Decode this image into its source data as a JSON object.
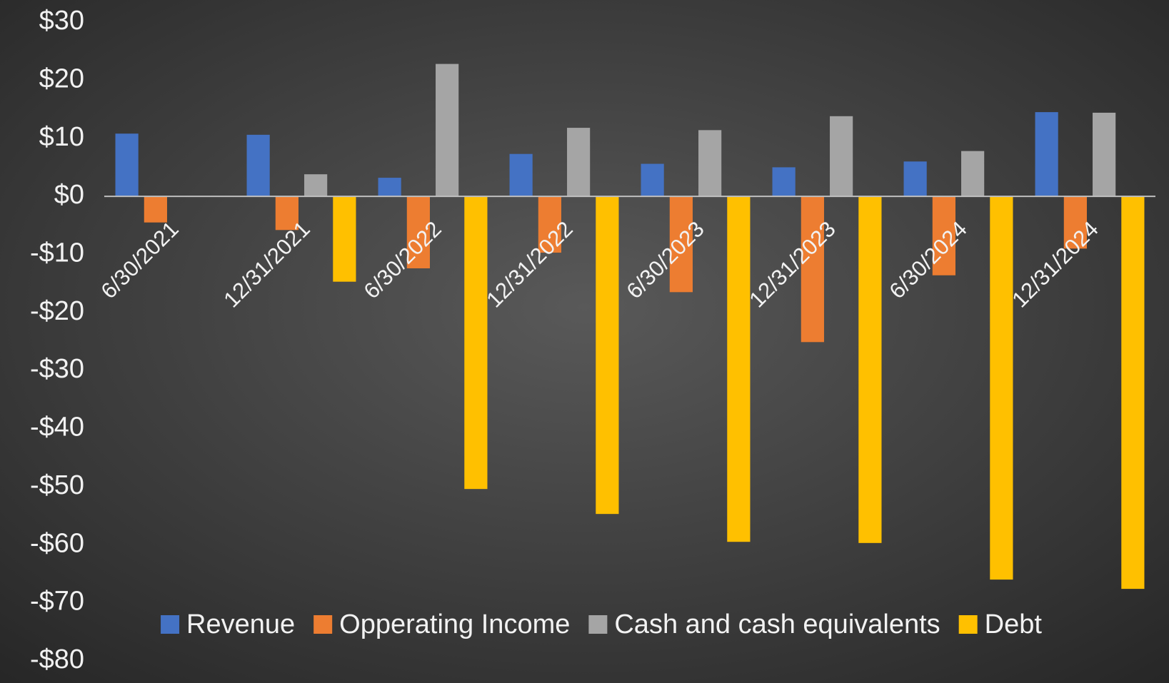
{
  "chart_data": {
    "type": "bar",
    "categories": [
      "6/30/2021",
      "12/31/2021",
      "6/30/2022",
      "12/31/2022",
      "6/30/2023",
      "12/31/2023",
      "6/30/2024",
      "12/31/2024"
    ],
    "series": [
      {
        "name": "Revenue",
        "color": "#4472c4",
        "values": [
          10.8,
          10.6,
          3.2,
          7.3,
          5.6,
          5.0,
          6.0,
          14.5
        ]
      },
      {
        "name": "Opperating Income",
        "color": "#ed7d31",
        "values": [
          -4.5,
          -5.8,
          -12.4,
          -9.7,
          -16.5,
          -25.1,
          -13.6,
          -9.0
        ]
      },
      {
        "name": "Cash and cash equivalents",
        "color": "#a5a5a5",
        "values": [
          null,
          3.8,
          22.8,
          11.8,
          11.4,
          13.8,
          7.8,
          14.4
        ]
      },
      {
        "name": "Debt",
        "color": "#ffc000",
        "values": [
          null,
          -14.7,
          -50.4,
          -54.7,
          -59.5,
          -59.7,
          -66.0,
          -67.6
        ]
      }
    ],
    "ylim": [
      -80,
      30
    ],
    "yticks": [
      {
        "value": 30,
        "label": "$30"
      },
      {
        "value": 20,
        "label": "$20"
      },
      {
        "value": 10,
        "label": "$10"
      },
      {
        "value": 0,
        "label": "$0"
      },
      {
        "value": -10,
        "label": "-$10"
      },
      {
        "value": -20,
        "label": "-$20"
      },
      {
        "value": -30,
        "label": "-$30"
      },
      {
        "value": -40,
        "label": "-$40"
      },
      {
        "value": -50,
        "label": "-$50"
      },
      {
        "value": -60,
        "label": "-$60"
      },
      {
        "value": -70,
        "label": "-$70"
      },
      {
        "value": -80,
        "label": "-$80"
      }
    ],
    "grid": false,
    "legend": "bottom"
  }
}
